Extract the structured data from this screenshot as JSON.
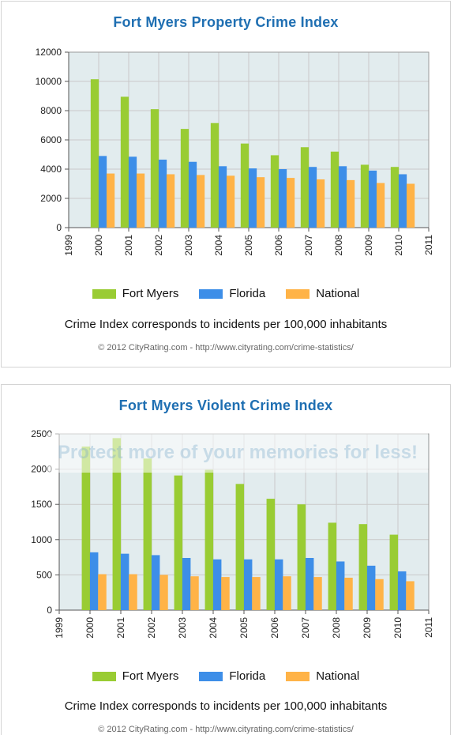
{
  "colors": {
    "fort_myers": "#99cc33",
    "florida": "#3d8ee8",
    "national": "#ffb347",
    "plot_bg": "#e2ecee",
    "grid": "#c9c9c9",
    "title": "#1f6fb2"
  },
  "chart_data": [
    {
      "type": "bar",
      "title": "Fort Myers Property Crime Index",
      "x": [
        2000,
        2001,
        2002,
        2003,
        2004,
        2005,
        2006,
        2007,
        2008,
        2009,
        2010
      ],
      "xlim": [
        1999,
        2011
      ],
      "xticks": [
        1999,
        2000,
        2001,
        2002,
        2003,
        2004,
        2005,
        2006,
        2007,
        2008,
        2009,
        2010,
        2011
      ],
      "ylim": [
        0,
        12000
      ],
      "yticks": [
        0,
        2000,
        4000,
        6000,
        8000,
        10000,
        12000
      ],
      "grid": true,
      "legend_position": "bottom",
      "series": [
        {
          "name": "Fort Myers",
          "values": [
            10150,
            8950,
            8100,
            6750,
            7150,
            5750,
            4950,
            5500,
            5200,
            4300,
            4150
          ]
        },
        {
          "name": "Florida",
          "values": [
            4900,
            4850,
            4650,
            4500,
            4200,
            4050,
            4000,
            4150,
            4200,
            3900,
            3650
          ]
        },
        {
          "name": "National",
          "values": [
            3700,
            3700,
            3650,
            3600,
            3550,
            3450,
            3400,
            3300,
            3250,
            3050,
            3000
          ]
        }
      ],
      "note": "Crime Index corresponds to incidents per 100,000 inhabitants",
      "credit": "© 2012 CityRating.com - http://www.cityrating.com/crime-statistics/"
    },
    {
      "type": "bar",
      "title": "Fort Myers Violent Crime Index",
      "x": [
        2000,
        2001,
        2002,
        2003,
        2004,
        2005,
        2006,
        2007,
        2008,
        2009,
        2010
      ],
      "xlim": [
        1999,
        2011
      ],
      "xticks": [
        1999,
        2000,
        2001,
        2002,
        2003,
        2004,
        2005,
        2006,
        2007,
        2008,
        2009,
        2010,
        2011
      ],
      "ylim": [
        0,
        2500
      ],
      "yticks": [
        0,
        500,
        1000,
        1500,
        2000,
        2500
      ],
      "grid": true,
      "legend_position": "bottom",
      "series": [
        {
          "name": "Fort Myers",
          "values": [
            2320,
            2440,
            2150,
            1910,
            1990,
            1790,
            1580,
            1500,
            1240,
            1220,
            1070
          ]
        },
        {
          "name": "Florida",
          "values": [
            820,
            800,
            780,
            740,
            720,
            720,
            720,
            740,
            690,
            630,
            550
          ]
        },
        {
          "name": "National",
          "values": [
            510,
            510,
            500,
            480,
            470,
            470,
            480,
            470,
            460,
            440,
            410
          ]
        }
      ],
      "note": "Crime Index corresponds to incidents per 100,000 inhabitants",
      "credit": "© 2012 CityRating.com - http://www.cityrating.com/crime-statistics/"
    }
  ],
  "watermark": "Protect more of your memories for less!"
}
